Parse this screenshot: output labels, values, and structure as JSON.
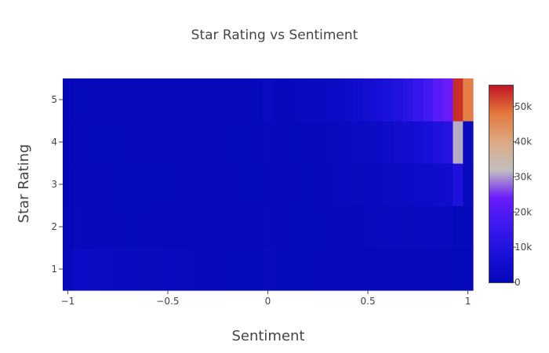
{
  "chart_data": {
    "type": "heatmap",
    "title": "Star Rating vs Sentiment",
    "xlabel": "Sentiment",
    "ylabel": "Star Rating",
    "xlim": [
      -1.025,
      1.025
    ],
    "ylim": [
      0.5,
      5.5
    ],
    "x_ticks": [
      -1,
      -0.5,
      0,
      0.5,
      1
    ],
    "x_tick_labels": [
      "−1",
      "−0.5",
      "0",
      "0.5",
      "1"
    ],
    "y_ticks": [
      1,
      2,
      3,
      4,
      5
    ],
    "y_tick_labels": [
      "1",
      "2",
      "3",
      "4",
      "5"
    ],
    "y_categories": [
      1,
      2,
      3,
      4,
      5
    ],
    "x_bin_start": -1.025,
    "x_bin_width": 0.05,
    "x_bins": [
      -1.0,
      -0.95,
      -0.9,
      -0.85,
      -0.8,
      -0.75,
      -0.7,
      -0.65,
      -0.6,
      -0.55,
      -0.5,
      -0.45,
      -0.4,
      -0.35,
      -0.3,
      -0.25,
      -0.2,
      -0.15,
      -0.1,
      -0.05,
      0.0,
      0.05,
      0.1,
      0.15,
      0.2,
      0.25,
      0.3,
      0.35,
      0.4,
      0.45,
      0.5,
      0.55,
      0.6,
      0.65,
      0.7,
      0.75,
      0.8,
      0.85,
      0.9,
      0.95,
      1.0
    ],
    "z": [
      [
        300,
        3200,
        3000,
        2800,
        2600,
        2400,
        2200,
        2000,
        1800,
        1800,
        1600,
        1400,
        1400,
        1200,
        1200,
        1000,
        1000,
        900,
        900,
        900,
        1800,
        900,
        900,
        900,
        900,
        800,
        800,
        800,
        800,
        800,
        800,
        800,
        800,
        800,
        800,
        800,
        800,
        800,
        800,
        500,
        400
      ],
      [
        200,
        1500,
        1300,
        1200,
        1100,
        1000,
        950,
        900,
        850,
        850,
        800,
        750,
        700,
        700,
        650,
        650,
        650,
        650,
        700,
        700,
        1500,
        800,
        800,
        900,
        900,
        950,
        1000,
        1100,
        1200,
        1300,
        1400,
        1500,
        1600,
        1700,
        1800,
        1900,
        2000,
        2200,
        2400,
        900,
        600
      ],
      [
        100,
        800,
        700,
        650,
        600,
        550,
        550,
        500,
        500,
        500,
        500,
        450,
        450,
        450,
        450,
        450,
        450,
        450,
        500,
        500,
        1200,
        600,
        700,
        800,
        900,
        1000,
        1200,
        1400,
        1600,
        1800,
        2100,
        2400,
        2700,
        3000,
        3300,
        3600,
        4000,
        4500,
        5000,
        9000,
        1500
      ],
      [
        100,
        700,
        600,
        550,
        500,
        500,
        450,
        450,
        450,
        450,
        450,
        450,
        450,
        450,
        450,
        450,
        500,
        500,
        500,
        600,
        1500,
        700,
        800,
        900,
        1100,
        1300,
        1500,
        1800,
        2100,
        2500,
        2900,
        3400,
        4000,
        4600,
        5400,
        6300,
        7500,
        9000,
        11000,
        31000,
        1800
      ],
      [
        150,
        900,
        800,
        750,
        700,
        650,
        600,
        600,
        600,
        600,
        600,
        600,
        600,
        600,
        650,
        650,
        700,
        700,
        800,
        900,
        2500,
        1100,
        1300,
        1600,
        1900,
        2300,
        2800,
        3400,
        4000,
        4800,
        5800,
        7000,
        8400,
        10000,
        12000,
        14500,
        17000,
        21000,
        24000,
        54000,
        47000
      ]
    ],
    "zmin": 0,
    "zmax": 56000,
    "colorscale": [
      [
        0,
        "#0508b8"
      ],
      [
        0.14,
        "#1910d8"
      ],
      [
        0.29,
        "#3c19f0"
      ],
      [
        0.43,
        "#6b1cfb"
      ],
      [
        0.57,
        "#c0bebe"
      ],
      [
        0.71,
        "#dcaa84"
      ],
      [
        0.86,
        "#e4773c"
      ],
      [
        1,
        "#c01523"
      ]
    ],
    "colorbar_ticks": [
      0,
      10000,
      20000,
      30000,
      40000,
      50000
    ],
    "colorbar_tick_labels": [
      "0",
      "10k",
      "20k",
      "30k",
      "40k",
      "50k"
    ],
    "grid": false,
    "legend": "colorbar-right"
  }
}
